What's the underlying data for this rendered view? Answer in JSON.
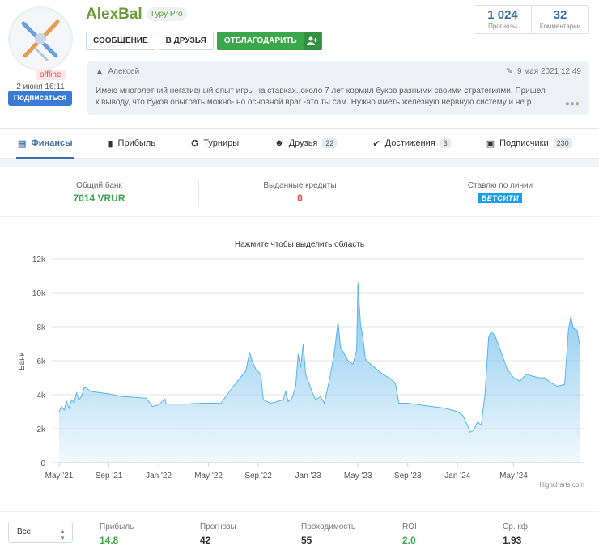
{
  "profile": {
    "username": "AlexBal",
    "rank": "Гуру Pro",
    "status": "offline",
    "last_seen": "2 июня 16:11",
    "subscribe_label": "Подписаться",
    "buttons": {
      "message": "СООБЩЕНИЕ",
      "add_friend": "В ДРУЗЬЯ",
      "thank": "ОТБЛАГОДАРИТЬ"
    },
    "stats": [
      {
        "value": "1 024",
        "label": "Прогнозы"
      },
      {
        "value": "32",
        "label": "Комментарии"
      }
    ],
    "quote": {
      "author": "Алексей",
      "date": "9 мая 2021 12:49",
      "line1": "Имею многолетний негативный опыт игры на ставках..около 7 лет кормил буков разными своими стратегиями. Пришел",
      "line2": "к выводу, что буков обыграть можно- но основной враг -это ты сам. Нужно иметь железную нервную систему и не р..."
    }
  },
  "tabs": [
    {
      "label": "Финансы",
      "icon": "wallet-icon",
      "badge": "",
      "active": true
    },
    {
      "label": "Прибыль",
      "icon": "bar-chart-icon",
      "badge": ""
    },
    {
      "label": "Турниры",
      "icon": "star-icon",
      "badge": ""
    },
    {
      "label": "Друзья",
      "icon": "friends-icon",
      "badge": "22"
    },
    {
      "label": "Достижения",
      "icon": "badge-check-icon",
      "badge": "3"
    },
    {
      "label": "Подписчики",
      "icon": "subscribers-icon",
      "badge": "230"
    }
  ],
  "summary": {
    "bank_label": "Общий банк",
    "bank_value": "7014 VRUR",
    "credits_label": "Выданные кредиты",
    "credits_value": "0",
    "line_label": "Ставлю по линии",
    "bookmaker": "БЕТСИТИ"
  },
  "chart_data": {
    "type": "area",
    "title": "Нажмите чтобы выделить область",
    "ylabel": "Банк",
    "xlabel": "",
    "ylim": [
      0,
      12000
    ],
    "y_ticks": [
      "0",
      "2k",
      "4k",
      "6k",
      "8k",
      "10k",
      "12k"
    ],
    "x_ticks": [
      "May '21",
      "Sep '21",
      "Jan '22",
      "May '22",
      "Sep '22",
      "Jan '23",
      "May '23",
      "Sep '23",
      "Jan '24",
      "May '24"
    ],
    "credit": "Highcharts.com",
    "color": "#7cc3ef",
    "points": [
      [
        0.0,
        3000
      ],
      [
        0.2,
        3300
      ],
      [
        0.4,
        3100
      ],
      [
        0.6,
        3600
      ],
      [
        0.8,
        3200
      ],
      [
        1.0,
        3700
      ],
      [
        1.2,
        3500
      ],
      [
        1.4,
        4100
      ],
      [
        1.6,
        3700
      ],
      [
        1.8,
        3900
      ],
      [
        2.0,
        4400
      ],
      [
        2.2,
        4400
      ],
      [
        2.5,
        4200
      ],
      [
        3.0,
        4150
      ],
      [
        4.0,
        4050
      ],
      [
        5.0,
        3900
      ],
      [
        6.0,
        3850
      ],
      [
        7.0,
        3800
      ],
      [
        7.5,
        3300
      ],
      [
        8.0,
        3400
      ],
      [
        8.5,
        3750
      ],
      [
        8.6,
        3450
      ],
      [
        10.0,
        3450
      ],
      [
        11.5,
        3500
      ],
      [
        13.0,
        3500
      ],
      [
        14.0,
        4500
      ],
      [
        15.0,
        5400
      ],
      [
        15.3,
        6500
      ],
      [
        15.5,
        6000
      ],
      [
        15.8,
        5500
      ],
      [
        16.2,
        5200
      ],
      [
        16.4,
        3700
      ],
      [
        17.0,
        3500
      ],
      [
        17.5,
        3600
      ],
      [
        18.0,
        3700
      ],
      [
        18.2,
        4200
      ],
      [
        18.4,
        3600
      ],
      [
        18.7,
        3800
      ],
      [
        19.0,
        4500
      ],
      [
        19.2,
        6400
      ],
      [
        19.4,
        5600
      ],
      [
        19.6,
        7000
      ],
      [
        19.8,
        5200
      ],
      [
        20.0,
        4800
      ],
      [
        20.3,
        4200
      ],
      [
        20.6,
        3700
      ],
      [
        21.0,
        3900
      ],
      [
        21.3,
        3500
      ],
      [
        21.6,
        4500
      ],
      [
        21.8,
        5200
      ],
      [
        22.1,
        6500
      ],
      [
        22.4,
        8300
      ],
      [
        22.6,
        6800
      ],
      [
        22.9,
        6400
      ],
      [
        23.2,
        6000
      ],
      [
        23.6,
        5800
      ],
      [
        23.9,
        6600
      ],
      [
        24.0,
        10600
      ],
      [
        24.2,
        8200
      ],
      [
        24.4,
        7400
      ],
      [
        24.6,
        6100
      ],
      [
        25.0,
        5800
      ],
      [
        25.5,
        5500
      ],
      [
        26.0,
        5200
      ],
      [
        26.5,
        5000
      ],
      [
        27.0,
        4700
      ],
      [
        27.3,
        3500
      ],
      [
        28.0,
        3500
      ],
      [
        29.0,
        3400
      ],
      [
        30.0,
        3300
      ],
      [
        31.0,
        3200
      ],
      [
        32.0,
        3000
      ],
      [
        32.4,
        2800
      ],
      [
        32.8,
        2200
      ],
      [
        33.0,
        1800
      ],
      [
        33.3,
        1900
      ],
      [
        33.6,
        2400
      ],
      [
        33.9,
        2200
      ],
      [
        34.2,
        4000
      ],
      [
        34.5,
        7400
      ],
      [
        34.7,
        7700
      ],
      [
        35.0,
        7500
      ],
      [
        35.5,
        6500
      ],
      [
        36.0,
        5500
      ],
      [
        36.5,
        5000
      ],
      [
        37.0,
        4800
      ],
      [
        37.5,
        5200
      ],
      [
        38.0,
        5100
      ],
      [
        38.5,
        5000
      ],
      [
        39.0,
        5000
      ],
      [
        39.5,
        4700
      ],
      [
        40.0,
        4500
      ],
      [
        40.6,
        4600
      ],
      [
        40.9,
        7800
      ],
      [
        41.1,
        8600
      ],
      [
        41.3,
        7900
      ],
      [
        41.6,
        7800
      ],
      [
        41.8,
        7000
      ]
    ]
  },
  "filter": {
    "selected": "Все"
  },
  "bottom_stats": [
    {
      "label": "Прибыль",
      "value": "14.8",
      "green": true
    },
    {
      "label": "Прогнозы",
      "value": "42",
      "green": false
    },
    {
      "label": "Проходимость",
      "value": "55",
      "green": false
    },
    {
      "label": "ROI",
      "value": "2.0",
      "green": true
    },
    {
      "label": "Ср. кф",
      "value": "1.93",
      "green": false
    }
  ]
}
